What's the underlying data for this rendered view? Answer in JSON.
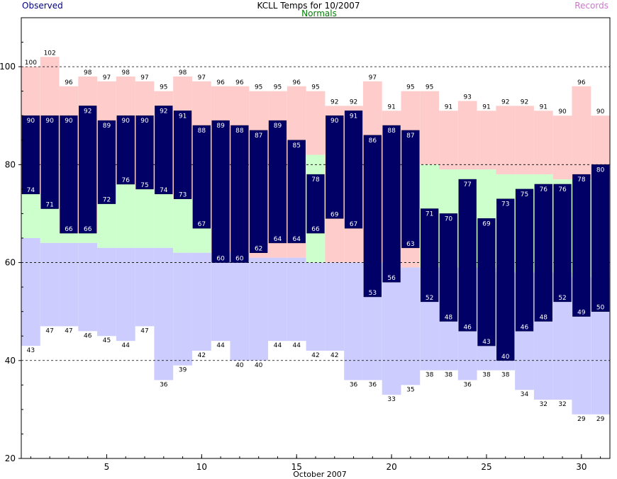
{
  "header": {
    "title": "KCLL Temps for 10/2007",
    "observed_label": "Observed",
    "normals_label": "Normals",
    "records_label": "Records"
  },
  "colors": {
    "record_band": "#ffcccc",
    "normal_band": "#ccffcc",
    "record_low_band": "#ccccff",
    "observed_bar": "#000066",
    "observed_text": "#000080",
    "normals_text": "#008000",
    "records_text": "#cc77cc"
  },
  "chart_data": {
    "type": "bar",
    "title": "KCLL Temps for 10/2007",
    "xlabel": "October 2007",
    "ylabel": "",
    "ylim": [
      20,
      110
    ],
    "xlim": [
      0.5,
      31.5
    ],
    "y_ticks": [
      20,
      40,
      60,
      80,
      100
    ],
    "x_ticks": [
      5,
      10,
      15,
      20,
      25,
      30
    ],
    "grid_lines_y": [
      40,
      60,
      80,
      100
    ],
    "days": [
      1,
      2,
      3,
      4,
      5,
      6,
      7,
      8,
      9,
      10,
      11,
      12,
      13,
      14,
      15,
      16,
      17,
      18,
      19,
      20,
      21,
      22,
      23,
      24,
      25,
      26,
      27,
      28,
      29,
      30,
      31
    ],
    "series": [
      {
        "name": "Observed High",
        "values": [
          90,
          90,
          90,
          92,
          89,
          90,
          90,
          92,
          91,
          88,
          89,
          88,
          87,
          89,
          85,
          78,
          90,
          91,
          86,
          88,
          87,
          71,
          70,
          77,
          69,
          73,
          75,
          76,
          76,
          78,
          80
        ]
      },
      {
        "name": "Observed Low",
        "values": [
          74,
          71,
          66,
          66,
          72,
          76,
          75,
          74,
          73,
          67,
          60,
          60,
          62,
          64,
          64,
          66,
          69,
          67,
          53,
          56,
          63,
          52,
          48,
          46,
          43,
          40,
          46,
          48,
          52,
          49,
          50
        ]
      },
      {
        "name": "Record High",
        "values": [
          100,
          102,
          96,
          98,
          97,
          98,
          97,
          95,
          98,
          97,
          96,
          96,
          95,
          95,
          96,
          95,
          92,
          92,
          97,
          91,
          95,
          95,
          91,
          93,
          91,
          92,
          92,
          91,
          90,
          96,
          90
        ]
      },
      {
        "name": "Record Low",
        "values": [
          43,
          47,
          47,
          46,
          45,
          44,
          47,
          36,
          39,
          42,
          44,
          40,
          40,
          44,
          44,
          42,
          42,
          36,
          36,
          33,
          35,
          38,
          38,
          36,
          38,
          38,
          34,
          32,
          32,
          29,
          29
        ]
      },
      {
        "name": "Normal High",
        "values": [
          74,
          71,
          66,
          66,
          72,
          76,
          75,
          74,
          73,
          67,
          60,
          60,
          61,
          61,
          61,
          82,
          60,
          60,
          60,
          60,
          59,
          80,
          79,
          79,
          79,
          78,
          78,
          78,
          77,
          77,
          77
        ]
      },
      {
        "name": "Normal Low",
        "values": [
          65,
          64,
          64,
          64,
          63,
          63,
          63,
          63,
          62,
          62,
          62,
          62,
          61,
          61,
          61,
          60,
          60,
          60,
          60,
          60,
          59,
          59,
          59,
          59,
          59,
          58,
          58,
          58,
          58,
          57,
          57
        ]
      }
    ],
    "grid": true,
    "legend": "top"
  }
}
